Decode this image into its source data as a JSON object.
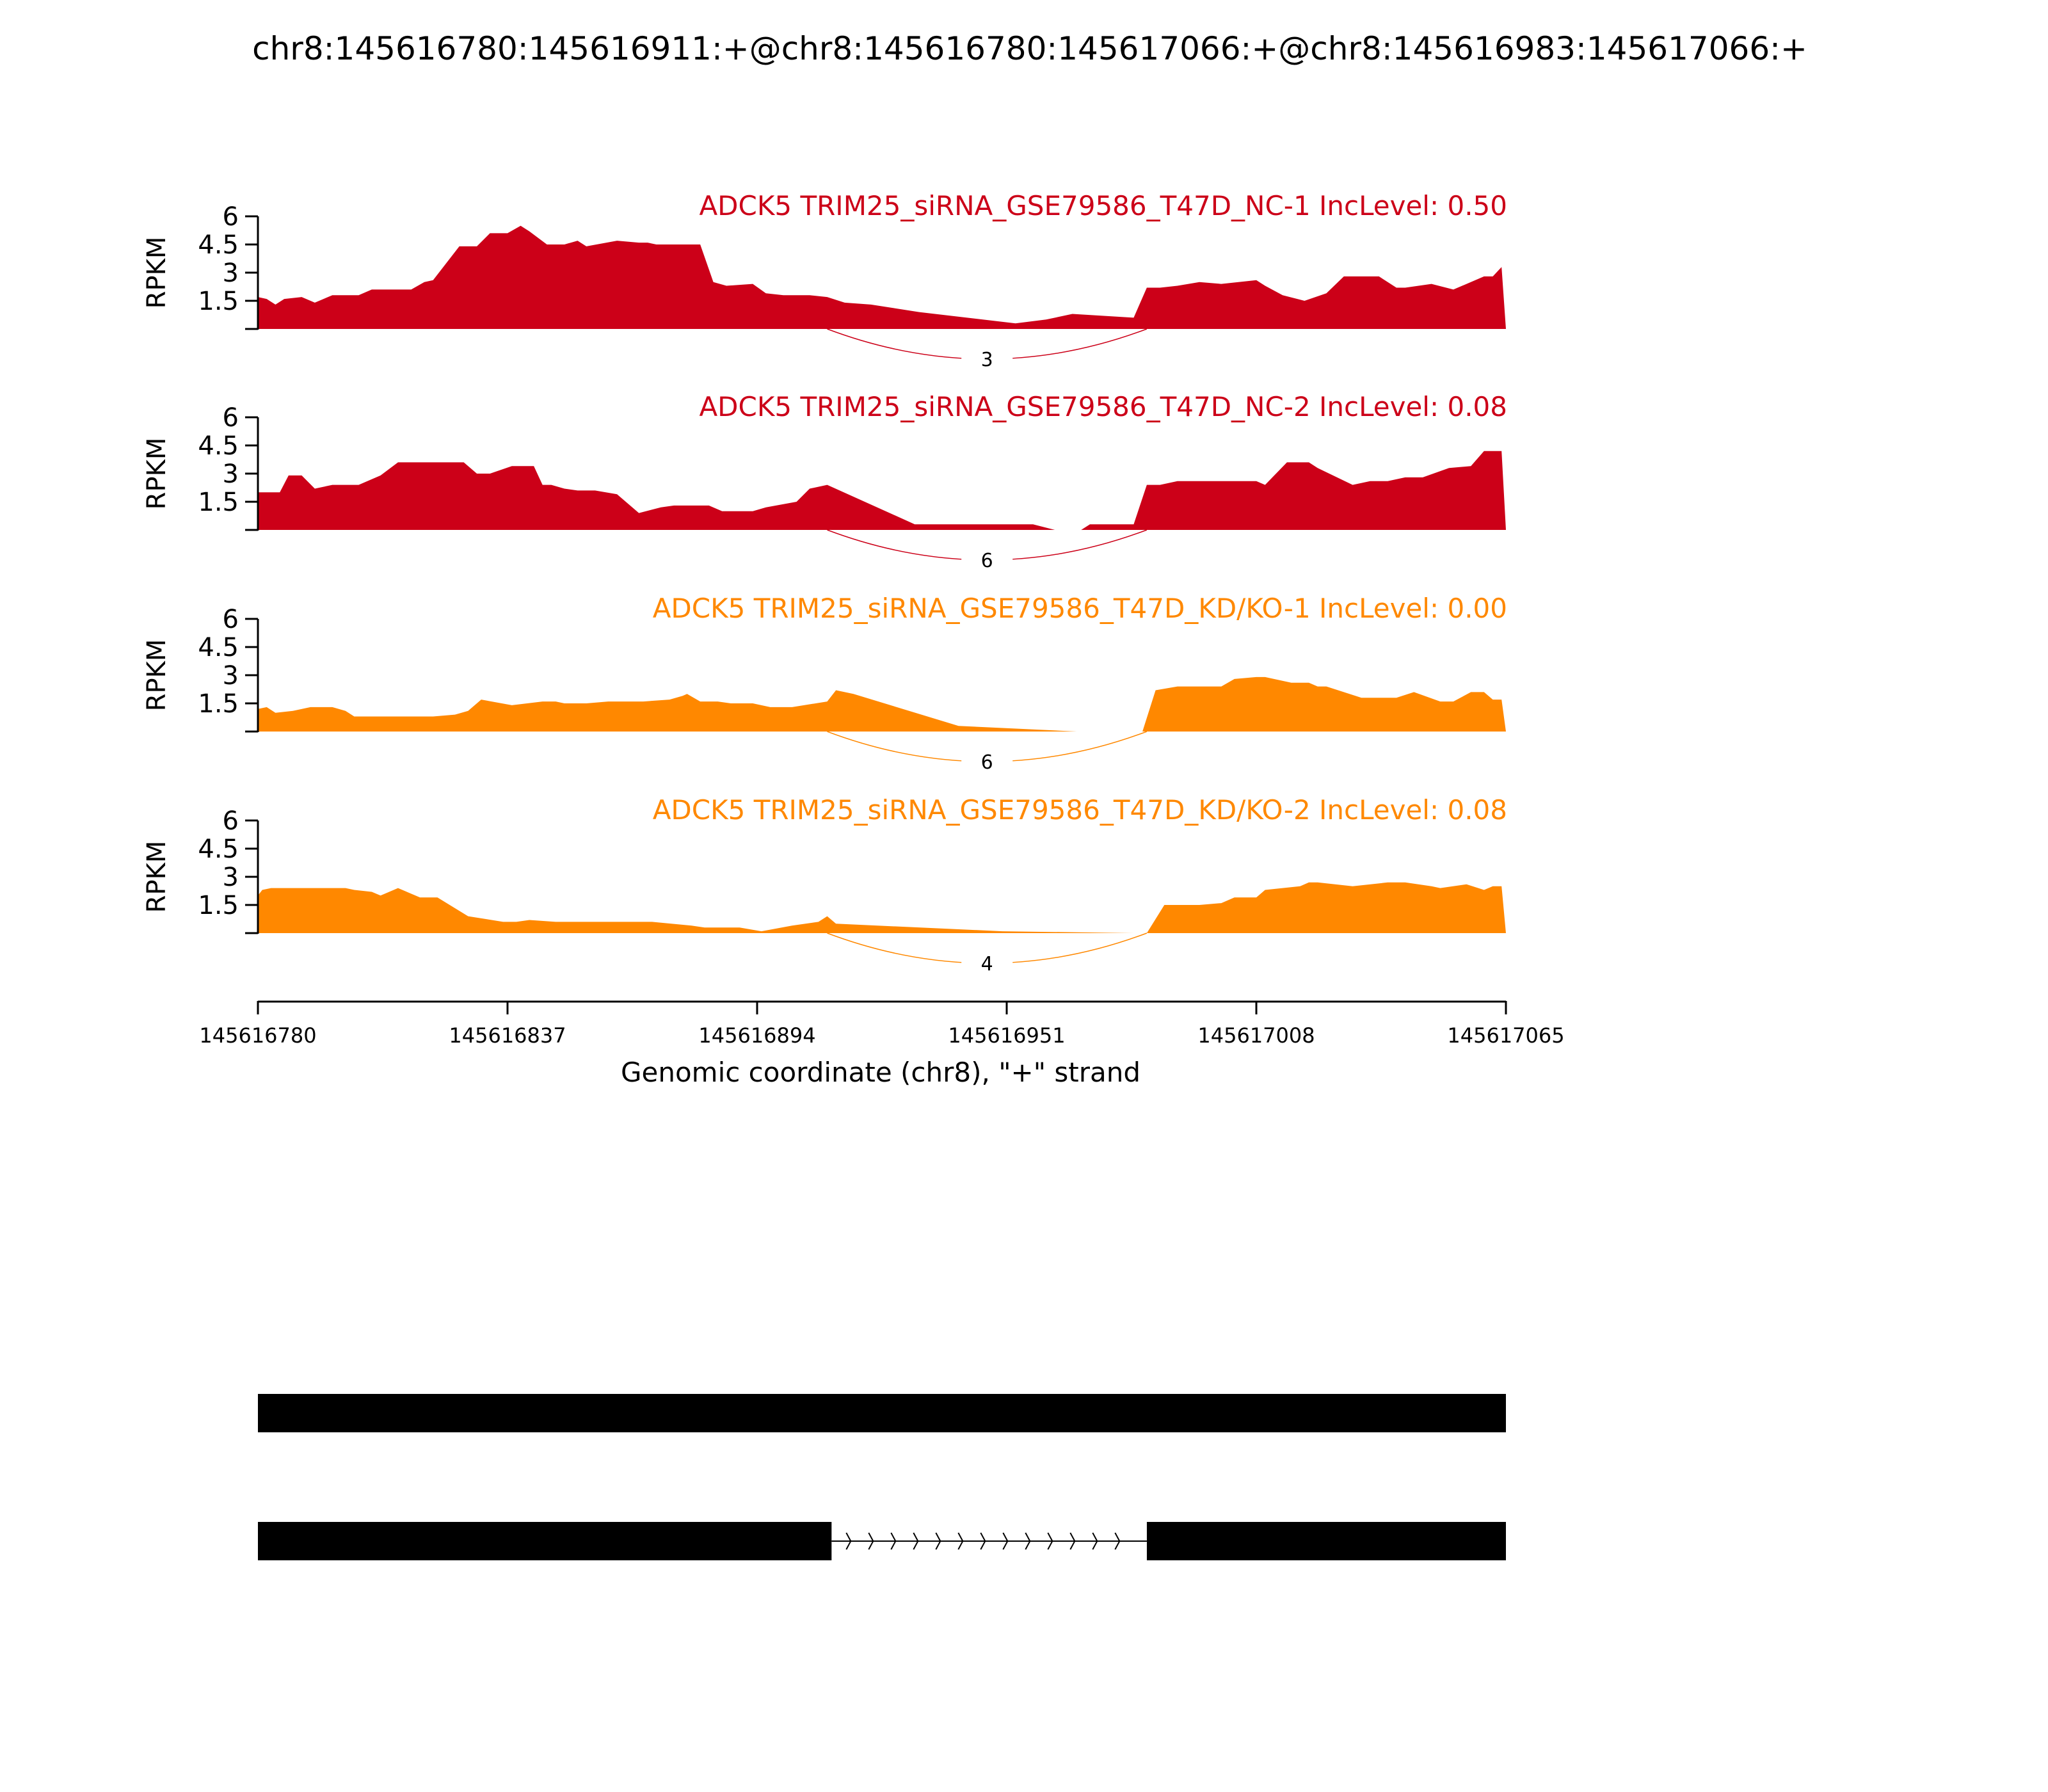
{
  "title": "chr8:145616780:145616911:+@chr8:145616780:145617066:+@chr8:145616983:145617066:+",
  "xlabel": "Genomic coordinate (chr8), \"+\" strand",
  "ylabel": "RPKM",
  "colors": {
    "nc": "#cc0018",
    "kd": "#ff8800",
    "axis": "#000000",
    "exon": "#000000"
  },
  "chart_data": {
    "type": "area",
    "xlim": [
      145616780,
      145617065
    ],
    "ylim": [
      0,
      6
    ],
    "x_ticks": [
      145616780,
      145616837,
      145616894,
      145616951,
      145617008,
      145617065
    ],
    "y_ticks": [
      1.5,
      3,
      4.5,
      6
    ],
    "y_tick_labels": [
      "1.5",
      "3",
      "4.5",
      "6"
    ],
    "series": [
      {
        "name": "ADCK5 TRIM25_siRNA_GSE79586_T47D_NC-1 IncLevel: 0.50",
        "group": "nc",
        "junction": {
          "count": "3",
          "start": 145616910,
          "end": 145616983
        },
        "x": [
          145616780,
          145616782,
          145616784,
          145616786,
          145616790,
          145616793,
          145616797,
          145616803,
          145616806,
          145616815,
          145616818,
          145616820,
          145616826,
          145616830,
          145616833,
          145616835,
          145616837,
          145616840,
          145616842,
          145616846,
          145616850,
          145616853,
          145616855,
          145616862,
          145616867,
          145616869,
          145616871,
          145616875,
          145616881,
          145616884,
          145616887,
          145616893,
          145616896,
          145616900,
          145616906,
          145616910,
          145616914,
          145616920,
          145616931,
          145616953,
          145616960,
          145616966,
          145616980,
          145616983,
          145616986,
          145616990,
          145616995,
          145617000,
          145617008,
          145617010,
          145617014,
          145617019,
          145617024,
          145617028,
          145617032,
          145617036,
          145617040,
          145617042,
          145617048,
          145617053,
          145617060,
          145617062,
          145617064,
          145617065
        ],
        "y": [
          1.7,
          1.6,
          1.3,
          1.6,
          1.7,
          1.4,
          1.8,
          1.8,
          2.1,
          2.1,
          2.5,
          2.6,
          4.4,
          4.4,
          5.1,
          5.1,
          5.1,
          5.5,
          5.2,
          4.5,
          4.5,
          4.7,
          4.4,
          4.7,
          4.6,
          4.6,
          4.5,
          4.5,
          4.5,
          2.5,
          2.3,
          2.4,
          1.9,
          1.8,
          1.8,
          1.7,
          1.4,
          1.3,
          0.9,
          0.3,
          0.5,
          0.8,
          0.6,
          2.2,
          2.2,
          2.3,
          2.5,
          2.4,
          2.6,
          2.3,
          1.8,
          1.5,
          1.9,
          2.8,
          2.8,
          2.8,
          2.2,
          2.2,
          2.4,
          2.1,
          2.8,
          2.8,
          3.3,
          0.0
        ]
      },
      {
        "name": "ADCK5 TRIM25_siRNA_GSE79586_T47D_NC-2 IncLevel: 0.08",
        "group": "nc",
        "junction": {
          "count": "6",
          "start": 145616910,
          "end": 145616983
        },
        "x": [
          145616780,
          145616785,
          145616787,
          145616790,
          145616793,
          145616797,
          145616803,
          145616808,
          145616812,
          145616820,
          145616823,
          145616827,
          145616830,
          145616833,
          145616838,
          145616843,
          145616845,
          145616847,
          145616850,
          145616853,
          145616857,
          145616862,
          145616867,
          145616872,
          145616875,
          145616877,
          145616880,
          145616883,
          145616886,
          145616890,
          145616893,
          145616896,
          145616903,
          145616906,
          145616910,
          145616930,
          145616950,
          145616957,
          145616962,
          145616968,
          145616970,
          145616980,
          145616983,
          145616986,
          145616990,
          145616995,
          145617000,
          145617008,
          145617010,
          145617015,
          145617020,
          145617022,
          145617030,
          145617034,
          145617038,
          145617042,
          145617046,
          145617052,
          145617057,
          145617060,
          145617064,
          145617065
        ],
        "y": [
          2.0,
          2.0,
          2.9,
          2.9,
          2.2,
          2.4,
          2.4,
          2.9,
          3.6,
          3.6,
          3.6,
          3.6,
          3.0,
          3.0,
          3.4,
          3.4,
          2.4,
          2.4,
          2.2,
          2.1,
          2.1,
          1.9,
          0.9,
          1.2,
          1.3,
          1.3,
          1.3,
          1.3,
          1.0,
          1.0,
          1.0,
          1.2,
          1.5,
          2.2,
          2.4,
          0.3,
          0.3,
          0.3,
          0.0,
          0.0,
          0.3,
          0.3,
          2.4,
          2.4,
          2.6,
          2.6,
          2.6,
          2.6,
          2.4,
          3.6,
          3.6,
          3.3,
          2.4,
          2.6,
          2.6,
          2.8,
          2.8,
          3.3,
          3.4,
          4.2,
          4.2,
          0.0
        ]
      },
      {
        "name": "ADCK5 TRIM25_siRNA_GSE79586_T47D_KD/KO-1 IncLevel: 0.00",
        "group": "kd",
        "junction": {
          "count": "6",
          "start": 145616910,
          "end": 145616983
        },
        "x": [
          145616780,
          145616782,
          145616784,
          145616788,
          145616792,
          145616797,
          145616800,
          145616802,
          145616805,
          145616815,
          145616818,
          145616820,
          145616825,
          145616828,
          145616831,
          145616838,
          145616845,
          145616848,
          145616850,
          145616853,
          145616855,
          145616860,
          145616866,
          145616868,
          145616874,
          145616877,
          145616878,
          145616881,
          145616883,
          145616885,
          145616888,
          145616893,
          145616897,
          145616902,
          145616910,
          145616912,
          145616916,
          145616940,
          145616967,
          145616982,
          145616985,
          145616990,
          145616995,
          145617000,
          145617003,
          145617008,
          145617010,
          145617016,
          145617020,
          145617022,
          145617024,
          145617032,
          145617040,
          145617044,
          145617050,
          145617053,
          145617057,
          145617060,
          145617062,
          145617064,
          145617065
        ],
        "y": [
          1.2,
          1.3,
          1.0,
          1.1,
          1.3,
          1.3,
          1.1,
          0.8,
          0.8,
          0.8,
          0.8,
          0.8,
          0.9,
          1.1,
          1.7,
          1.4,
          1.6,
          1.6,
          1.5,
          1.5,
          1.5,
          1.6,
          1.6,
          1.6,
          1.7,
          1.9,
          2.0,
          1.6,
          1.6,
          1.6,
          1.5,
          1.5,
          1.3,
          1.3,
          1.6,
          2.2,
          2.0,
          0.3,
          0.0,
          0.0,
          2.2,
          2.4,
          2.4,
          2.4,
          2.8,
          2.9,
          2.9,
          2.6,
          2.6,
          2.4,
          2.4,
          1.8,
          1.8,
          2.1,
          1.6,
          1.6,
          2.1,
          2.1,
          1.7,
          1.7,
          0.0
        ]
      },
      {
        "name": "ADCK5 TRIM25_siRNA_GSE79586_T47D_KD/KO-2 IncLevel: 0.08",
        "group": "kd",
        "junction": {
          "count": "4",
          "start": 145616910,
          "end": 145616983
        },
        "x": [
          145616780,
          145616781,
          145616783,
          145616787,
          145616800,
          145616802,
          145616806,
          145616808,
          145616812,
          145616817,
          145616821,
          145616828,
          145616836,
          145616839,
          145616842,
          145616848,
          145616858,
          145616862,
          145616870,
          145616879,
          145616882,
          145616890,
          145616895,
          145616902,
          145616908,
          145616910,
          145616912,
          145616950,
          145616980,
          145616983,
          145616987,
          145616995,
          145617000,
          145617003,
          145617008,
          145617010,
          145617018,
          145617020,
          145617022,
          145617030,
          145617038,
          145617042,
          145617048,
          145617050,
          145617056,
          145617060,
          145617062,
          145617064,
          145617065
        ],
        "y": [
          2.0,
          2.3,
          2.4,
          2.4,
          2.4,
          2.3,
          2.2,
          2.0,
          2.4,
          1.9,
          1.9,
          0.9,
          0.6,
          0.6,
          0.7,
          0.6,
          0.6,
          0.6,
          0.6,
          0.4,
          0.3,
          0.3,
          0.1,
          0.4,
          0.6,
          0.9,
          0.5,
          0.1,
          0.0,
          0.0,
          1.5,
          1.5,
          1.6,
          1.9,
          1.9,
          2.3,
          2.5,
          2.7,
          2.7,
          2.5,
          2.7,
          2.7,
          2.5,
          2.4,
          2.6,
          2.3,
          2.5,
          2.5,
          0.0
        ]
      }
    ],
    "isoforms": [
      {
        "exons": [
          [
            145616780,
            145617065
          ]
        ]
      },
      {
        "exons": [
          [
            145616780,
            145616911
          ],
          [
            145616983,
            145617065
          ]
        ]
      }
    ]
  }
}
